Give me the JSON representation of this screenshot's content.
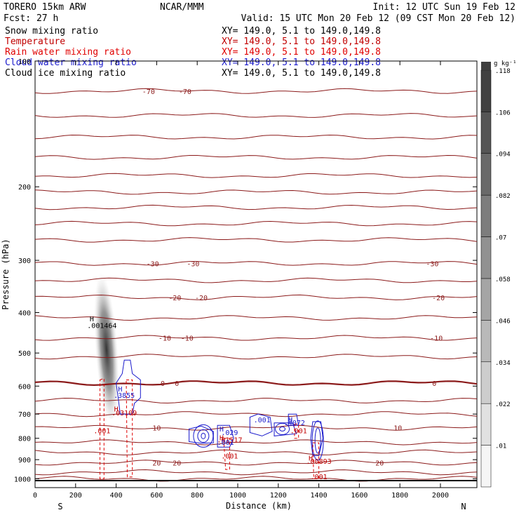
{
  "header": {
    "model": "TORERO  15km ARW",
    "center": "NCAR/MMM",
    "init": "Init: 12 UTC Sun 19 Feb 12",
    "fcst": "Fcst:   27 h",
    "valid": "Valid: 15 UTC Mon 20 Feb 12 (09 CST Mon 20 Feb 12)"
  },
  "fields": [
    {
      "name": "Snow mixing ratio",
      "xy": "XY= 149.0,  5.1 to 149.0,149.8",
      "color": "#000000"
    },
    {
      "name": "Temperature",
      "xy": "XY= 149.0,  5.1 to 149.0,149.8",
      "color": "#c00000"
    },
    {
      "name": "Rain water mixing ratio",
      "xy": "XY= 149.0,  5.1 to 149.0,149.8",
      "color": "#e00000"
    },
    {
      "name": "Cloud water mixing ratio",
      "xy": "XY= 149.0,  5.1 to 149.0,149.8",
      "color": "#1a1acc"
    },
    {
      "name": "Cloud ice mixing ratio",
      "xy": "XY= 149.0,  5.1 to 149.0,149.8",
      "color": "#000000"
    }
  ],
  "chart_data": {
    "type": "contour cross-section",
    "xlabel": "Distance (km)",
    "ylabel": "Pressure (hPa)",
    "xlim": [
      0,
      2180
    ],
    "ylim": [
      1050,
      100
    ],
    "y_scale": "log",
    "x_ticks": [
      0,
      200,
      400,
      600,
      800,
      1000,
      1200,
      1400,
      1600,
      1800,
      2000
    ],
    "x_tick_labels": [
      "0",
      "200",
      "400",
      "600",
      "800",
      "1000",
      "1200",
      "1400",
      "1600",
      "1800",
      "2000"
    ],
    "y_ticks": [
      100,
      200,
      300,
      400,
      500,
      600,
      700,
      800,
      900,
      1000
    ],
    "y_tick_labels": [
      "100",
      "200",
      "300",
      "400",
      "500",
      "600",
      "700",
      "800",
      "900",
      "1000"
    ],
    "x_end_labels": {
      "left": "S",
      "right": "N"
    },
    "surface_pressure": 1010,
    "temperature_isotherms": [
      {
        "value": -70,
        "pressure": 118,
        "labels": [
          {
            "x": 560,
            "text": "-70"
          },
          {
            "x": 740,
            "text": "-70"
          }
        ]
      },
      {
        "value": -30,
        "pressure": 305,
        "labels": [
          {
            "x": 580,
            "text": "-30"
          },
          {
            "x": 780,
            "text": "-30"
          },
          {
            "x": 1960,
            "text": "-30"
          }
        ]
      },
      {
        "value": -20,
        "pressure": 368,
        "labels": [
          {
            "x": 690,
            "text": "-20"
          },
          {
            "x": 820,
            "text": "-20"
          },
          {
            "x": 1990,
            "text": "-20"
          }
        ]
      },
      {
        "value": -10,
        "pressure": 460,
        "labels": [
          {
            "x": 640,
            "text": "-10"
          },
          {
            "x": 750,
            "text": "-10"
          },
          {
            "x": 1980,
            "text": "-10"
          }
        ]
      },
      {
        "value": 0,
        "pressure": 590,
        "labels": [
          {
            "x": 630,
            "text": "0"
          },
          {
            "x": 700,
            "text": "0"
          },
          {
            "x": 1970,
            "text": "0"
          }
        ]
      },
      {
        "value": 10,
        "pressure": 755,
        "labels": [
          {
            "x": 600,
            "text": "10"
          },
          {
            "x": 1790,
            "text": "10"
          }
        ]
      },
      {
        "value": 20,
        "pressure": 915,
        "labels": [
          {
            "x": 600,
            "text": "20"
          },
          {
            "x": 700,
            "text": "20"
          },
          {
            "x": 1700,
            "text": "20"
          }
        ]
      }
    ],
    "extra_isotherm_pressures": [
      135,
      152,
      170,
      188,
      206,
      224,
      245,
      268,
      335,
      412,
      510,
      650,
      700,
      818,
      865,
      965,
      1000
    ],
    "point_labels": [
      {
        "x": 280,
        "p": 420,
        "text": "H",
        "color": "#000000"
      },
      {
        "x": 330,
        "p": 436,
        "text": ".001464",
        "color": "#000000"
      },
      {
        "x": 420,
        "p": 618,
        "text": "H",
        "color": "#1a1acc"
      },
      {
        "x": 440,
        "p": 640,
        "text": ".3855",
        "color": "#1a1acc"
      },
      {
        "x": 400,
        "p": 690,
        "text": "H",
        "color": "#c00000"
      },
      {
        "x": 440,
        "p": 705,
        "text": ".03109",
        "color": "#c00000"
      },
      {
        "x": 330,
        "p": 778,
        "text": ".001",
        "color": "#c00000"
      },
      {
        "x": 920,
        "p": 770,
        "text": "H",
        "color": "#1a1acc"
      },
      {
        "x": 960,
        "p": 785,
        "text": ".029",
        "color": "#1a1acc"
      },
      {
        "x": 920,
        "p": 808,
        "text": "H",
        "color": "#c00000"
      },
      {
        "x": 960,
        "p": 818,
        "text": ".01517",
        "color": "#c00000"
      },
      {
        "x": 940,
        "p": 830,
        "text": ".001",
        "color": "#1a1acc"
      },
      {
        "x": 960,
        "p": 895,
        "text": ".001",
        "color": "#c00000"
      },
      {
        "x": 1120,
        "p": 733,
        "text": ".001",
        "color": "#1a1acc"
      },
      {
        "x": 1260,
        "p": 732,
        "text": "H",
        "color": "#1a1acc"
      },
      {
        "x": 1280,
        "p": 744,
        "text": ".4072",
        "color": "#1a1acc"
      },
      {
        "x": 1300,
        "p": 778,
        "text": ".001",
        "color": "#c00000"
      },
      {
        "x": 1360,
        "p": 905,
        "text": "H",
        "color": "#c00000"
      },
      {
        "x": 1400,
        "p": 920,
        "text": ".00893",
        "color": "#c00000"
      },
      {
        "x": 1400,
        "p": 1003,
        "text": ".001",
        "color": "#c00000"
      }
    ],
    "colorbar": {
      "unit": "g kg⁻¹",
      "levels": [
        0.01,
        0.022,
        0.034,
        0.046,
        0.058,
        0.07,
        0.082,
        0.094,
        0.106,
        0.118
      ],
      "labels": [
        ".01",
        ".022",
        ".034",
        ".046",
        ".058",
        ".07",
        ".082",
        ".094",
        ".106",
        ".118"
      ]
    },
    "grid": false
  }
}
